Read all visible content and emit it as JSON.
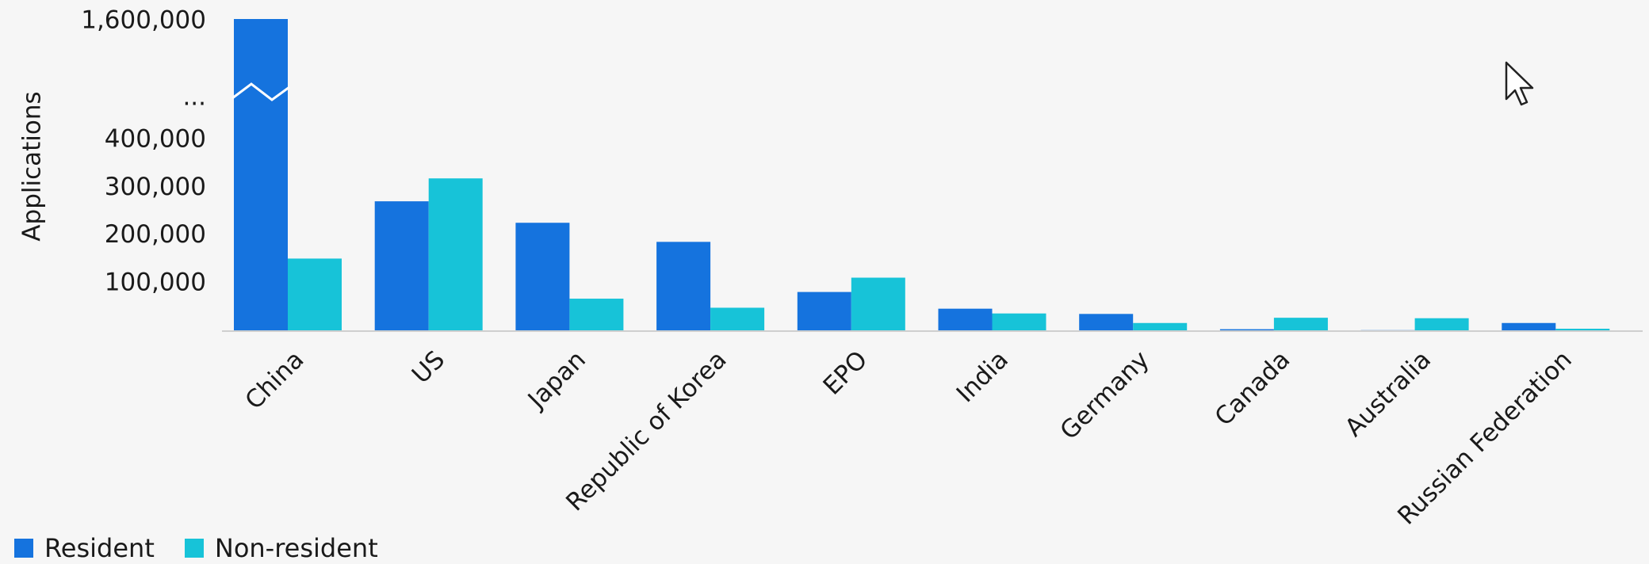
{
  "chart_data": {
    "type": "bar",
    "title": "",
    "xlabel": "",
    "ylabel": "Applications",
    "categories": [
      "China",
      "US",
      "Japan",
      "Republic of Korea",
      "EPO",
      "India",
      "Germany",
      "Canada",
      "Australia",
      "Russian Federation"
    ],
    "series": [
      {
        "name": "Resident",
        "color": "#1573de",
        "values": [
          1600000,
          272000,
          227000,
          187000,
          82000,
          47000,
          36000,
          4000,
          2000,
          17000
        ]
      },
      {
        "name": "Non-resident",
        "color": "#17c3d8",
        "values": [
          152000,
          320000,
          68000,
          49000,
          112000,
          37000,
          17000,
          28000,
          27000,
          5000
        ]
      }
    ],
    "y_ticks": [
      {
        "value": 100000,
        "label": "100,000"
      },
      {
        "value": 200000,
        "label": "200,000"
      },
      {
        "value": 300000,
        "label": "300,000"
      },
      {
        "value": 400000,
        "label": "400,000"
      },
      {
        "value": null,
        "label": "..."
      },
      {
        "value": 1600000,
        "label": "1,600,000"
      }
    ],
    "axis_break": {
      "from": 450000,
      "to": 1550000
    },
    "ylim": [
      0,
      1600000
    ],
    "grid": false,
    "legend_position": "bottom-left"
  },
  "cursor_icon": "mouse-pointer-icon"
}
